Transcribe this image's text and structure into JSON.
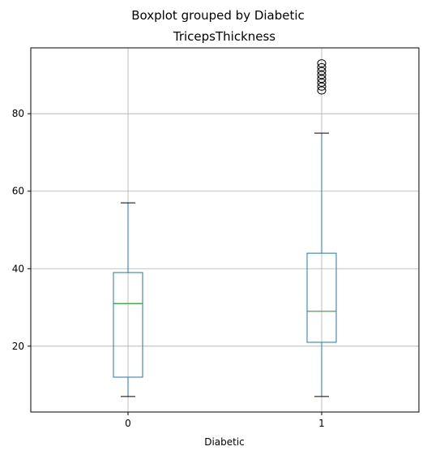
{
  "chart_data": {
    "type": "boxplot",
    "suptitle": "Boxplot grouped by Diabetic",
    "title": "TricepsThickness",
    "xlabel": "Diabetic",
    "ylabel": "",
    "categories": [
      "0",
      "1"
    ],
    "ylim": [
      3,
      97
    ],
    "yticks": [
      20,
      40,
      60,
      80
    ],
    "grid": true,
    "boxes": [
      {
        "category": "0",
        "whisker_low": 7,
        "q1": 12,
        "median": 31,
        "q3": 39,
        "whisker_high": 57,
        "outliers": []
      },
      {
        "category": "1",
        "whisker_low": 7,
        "q1": 21,
        "median": 29,
        "q3": 44,
        "whisker_high": 75,
        "outliers": [
          86,
          87,
          88,
          89,
          90,
          91,
          92,
          93
        ]
      }
    ],
    "colors": {
      "box": "#1f77b4",
      "median": "#2ca02c",
      "grid": "#b0b0b0",
      "axis": "#000000"
    }
  }
}
